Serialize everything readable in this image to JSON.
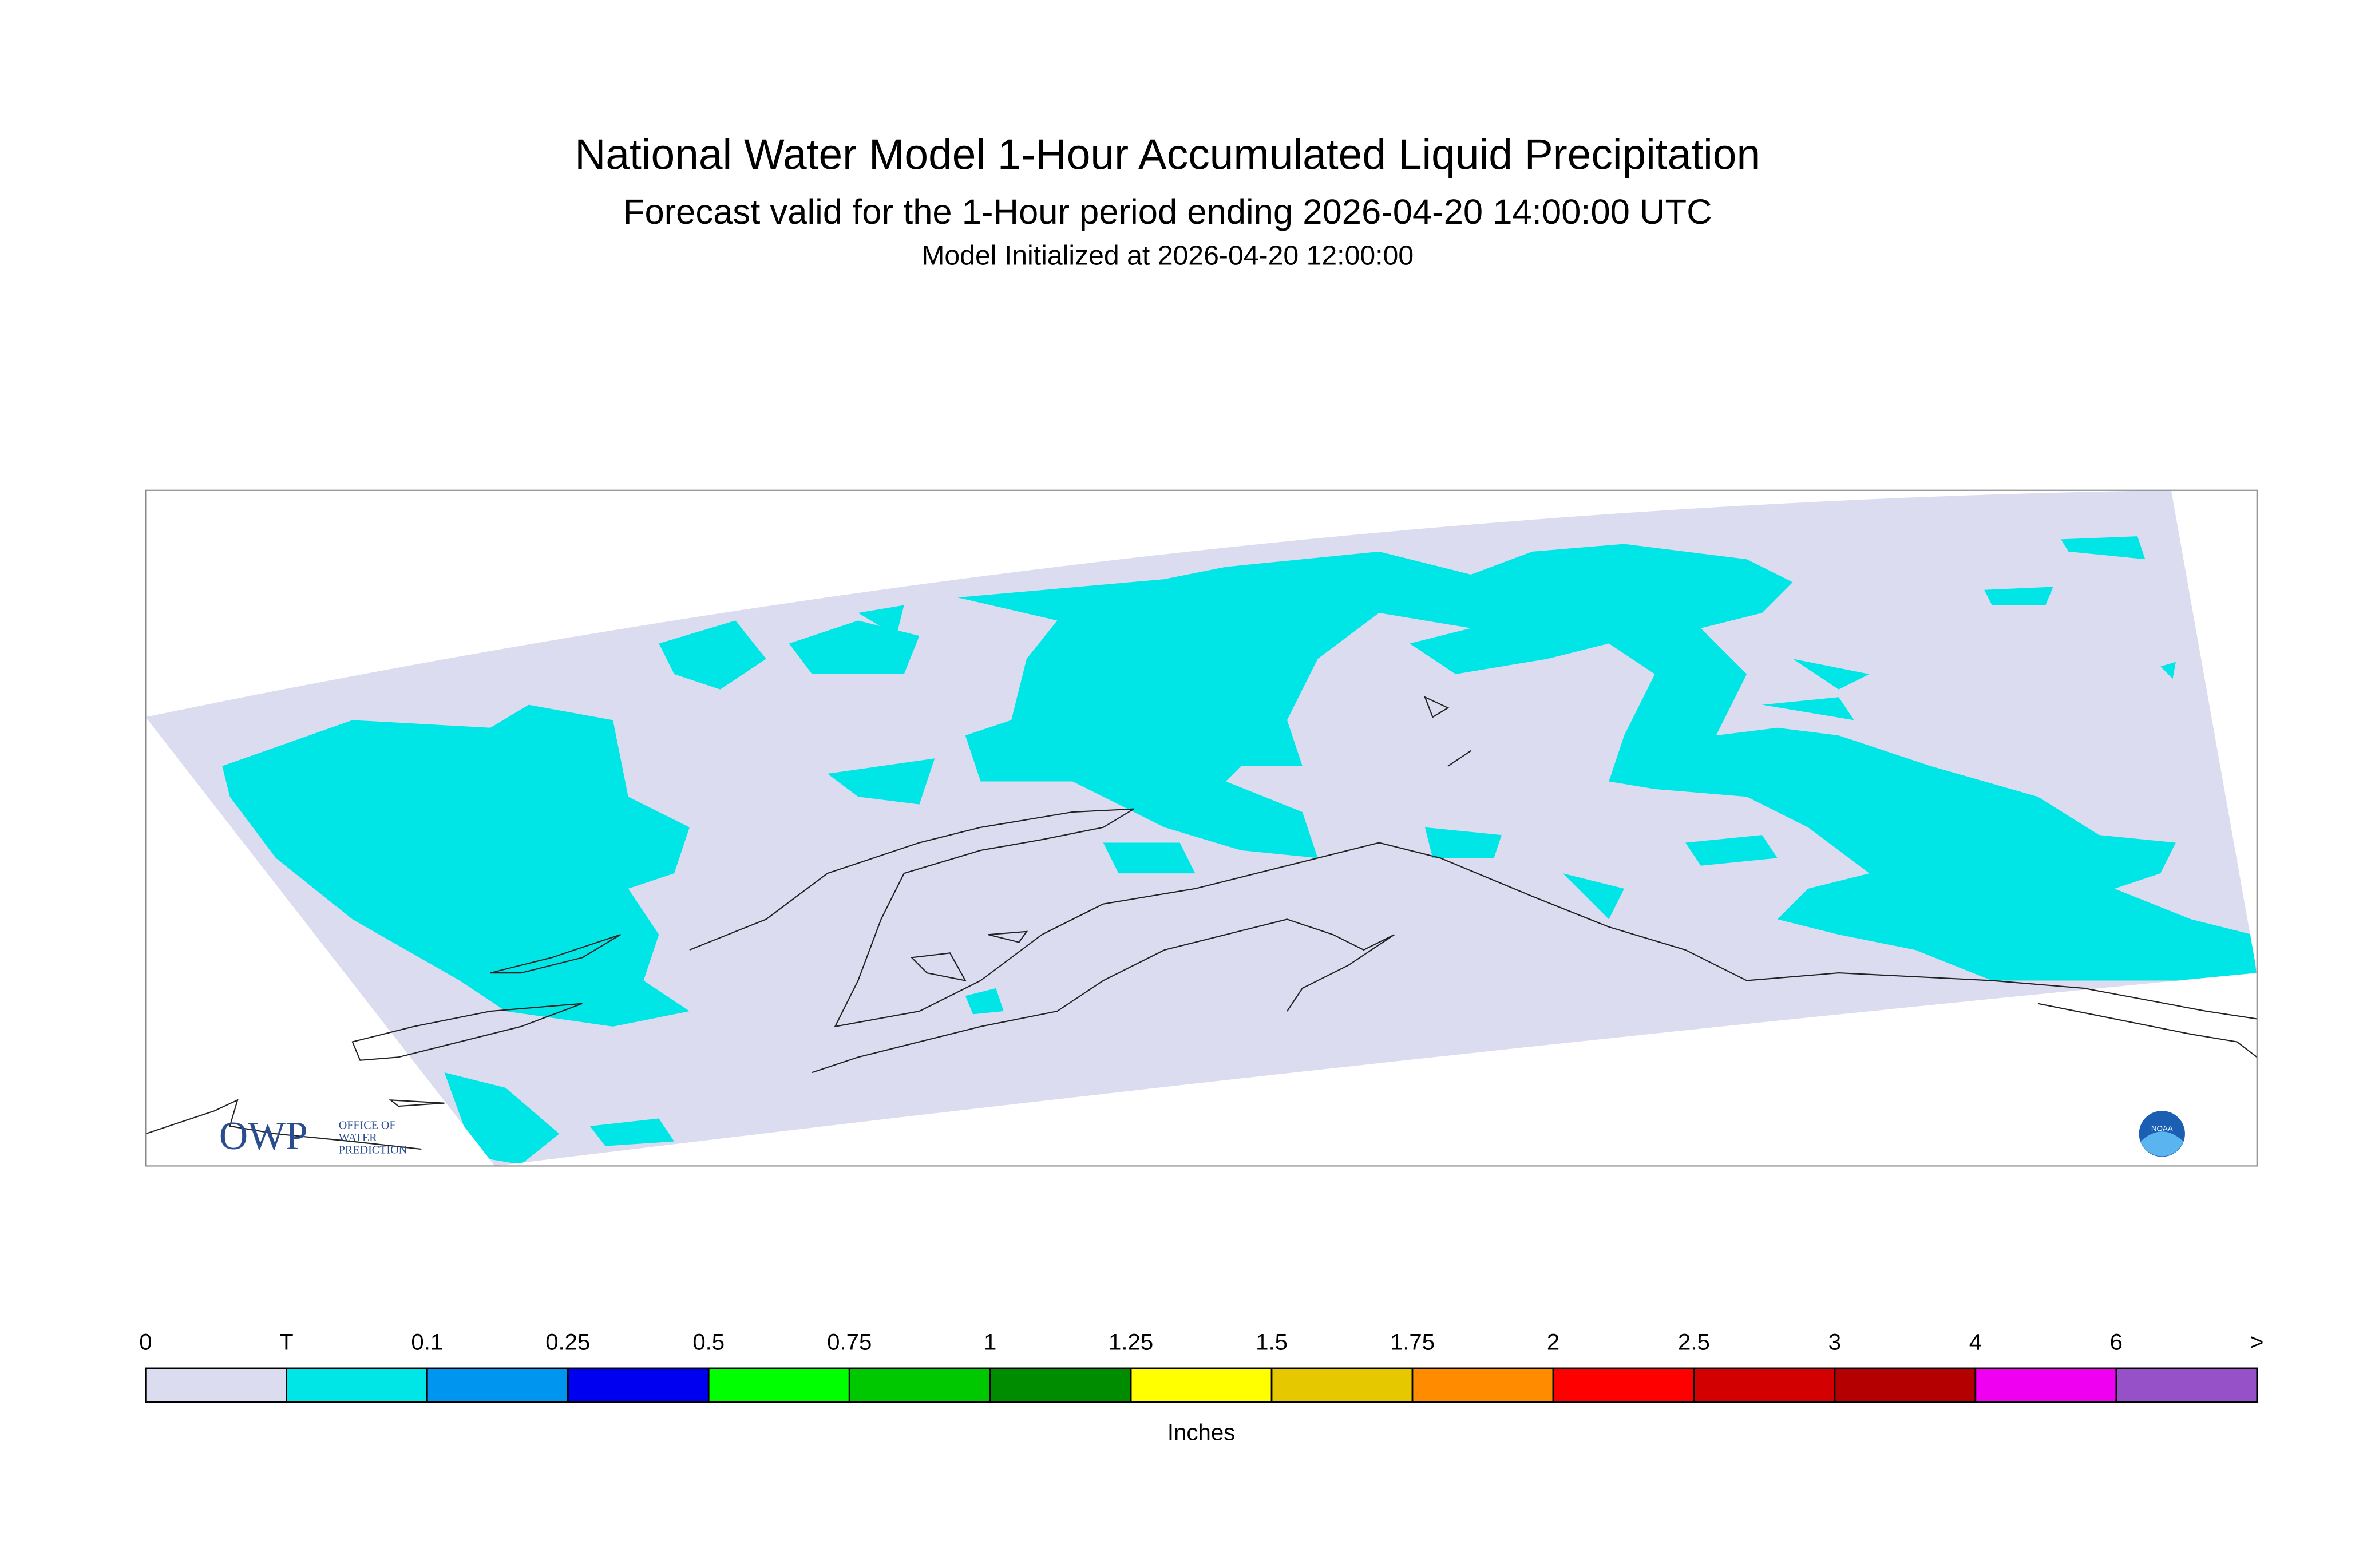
{
  "header": {
    "title": "National Water Model 1-Hour Accumulated Liquid Precipitation",
    "subtitle": "Forecast valid for the 1-Hour period ending 2026-04-20 14:00:00 UTC",
    "init": "Model Initialized at 2026-04-20 12:00:00"
  },
  "logos": {
    "owp": "OWP",
    "owp_name": [
      "OFFICE OF",
      "WATER",
      "PREDICTION"
    ],
    "noaa": "NOAA"
  },
  "legend": {
    "labels": [
      "0",
      "T",
      "0.1",
      "0.25",
      "0.5",
      "0.75",
      "1",
      "1.25",
      "1.5",
      "1.75",
      "2",
      "2.5",
      "3",
      "4",
      "6",
      ">"
    ],
    "colors": [
      "#dcdcf0",
      "#00e6e6",
      "#0096f0",
      "#0000f0",
      "#00ff00",
      "#00c800",
      "#008c00",
      "#ffff00",
      "#e6c800",
      "#ff8c00",
      "#ff0000",
      "#d20000",
      "#b40000",
      "#f000f0",
      "#9650c8"
    ],
    "unit": "Inches"
  }
}
